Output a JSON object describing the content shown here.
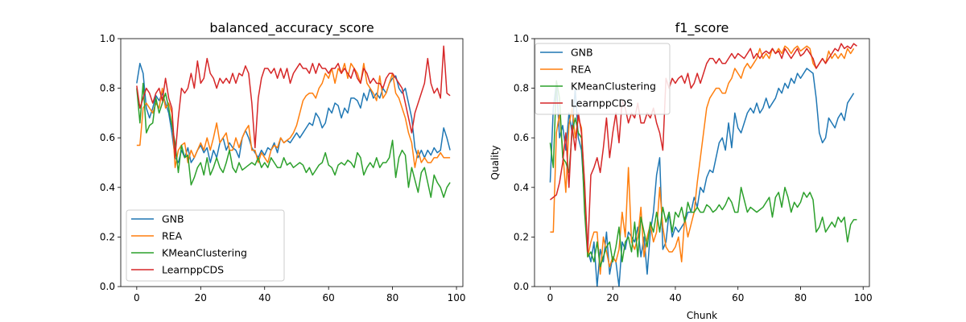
{
  "colors": {
    "GNB": "#1f77b4",
    "REA": "#ff7f0e",
    "KMeanClustering": "#2ca02c",
    "LearnppCDS": "#d62728"
  },
  "chart_data": [
    {
      "type": "line",
      "title": "balanced_accuracy_score",
      "xlabel": "",
      "ylabel": "",
      "xlim": [
        -5,
        102
      ],
      "ylim": [
        0.0,
        1.0
      ],
      "xticks": [
        "0",
        "20",
        "40",
        "60",
        "80",
        "100"
      ],
      "yticks": [
        "0.0",
        "0.2",
        "0.4",
        "0.6",
        "0.8",
        "1.0"
      ],
      "grid": false,
      "legend": "lower-left",
      "series": [
        {
          "name": "GNB",
          "values": [
            0.82,
            0.9,
            0.86,
            0.72,
            0.68,
            0.72,
            0.77,
            0.75,
            0.78,
            0.74,
            0.7,
            0.62,
            0.52,
            0.5,
            0.55,
            0.52,
            0.56,
            0.5,
            0.52,
            0.55,
            0.57,
            0.54,
            0.56,
            0.5,
            0.55,
            0.52,
            0.58,
            0.6,
            0.55,
            0.58,
            0.56,
            0.55,
            0.52,
            0.6,
            0.63,
            0.6,
            0.56,
            0.54,
            0.52,
            0.55,
            0.53,
            0.56,
            0.55,
            0.58,
            0.54,
            0.6,
            0.58,
            0.59,
            0.58,
            0.6,
            0.62,
            0.6,
            0.62,
            0.64,
            0.66,
            0.65,
            0.7,
            0.68,
            0.64,
            0.66,
            0.72,
            0.7,
            0.74,
            0.73,
            0.68,
            0.72,
            0.7,
            0.76,
            0.76,
            0.75,
            0.72,
            0.78,
            0.75,
            0.8,
            0.76,
            0.78,
            0.76,
            0.8,
            0.78,
            0.82,
            0.84,
            0.85,
            0.8,
            0.78,
            0.8,
            0.74,
            0.68,
            0.56,
            0.52,
            0.55,
            0.52,
            0.55,
            0.53,
            0.56,
            0.54,
            0.55,
            0.64,
            0.6,
            0.55
          ]
        },
        {
          "name": "REA",
          "values": [
            0.57,
            0.57,
            0.72,
            0.74,
            0.72,
            0.7,
            0.74,
            0.72,
            0.8,
            0.72,
            0.74,
            0.7,
            0.48,
            0.55,
            0.57,
            0.58,
            0.5,
            0.55,
            0.52,
            0.55,
            0.58,
            0.55,
            0.6,
            0.55,
            0.6,
            0.66,
            0.58,
            0.6,
            0.62,
            0.55,
            0.55,
            0.6,
            0.56,
            0.6,
            0.63,
            0.65,
            0.55,
            0.55,
            0.5,
            0.54,
            0.52,
            0.5,
            0.55,
            0.57,
            0.56,
            0.6,
            0.58,
            0.59,
            0.6,
            0.62,
            0.65,
            0.7,
            0.75,
            0.77,
            0.78,
            0.78,
            0.76,
            0.8,
            0.82,
            0.86,
            0.84,
            0.88,
            0.82,
            0.88,
            0.86,
            0.9,
            0.84,
            0.9,
            0.88,
            0.86,
            0.82,
            0.9,
            0.82,
            0.8,
            0.78,
            0.75,
            0.85,
            0.76,
            0.78,
            0.82,
            0.86,
            0.78,
            0.76,
            0.72,
            0.68,
            0.62,
            0.58,
            0.48,
            0.55,
            0.5,
            0.52,
            0.5,
            0.5,
            0.52,
            0.52,
            0.54,
            0.52,
            0.52,
            0.52
          ]
        },
        {
          "name": "KMeanClustering",
          "values": [
            0.8,
            0.66,
            0.82,
            0.62,
            0.65,
            0.66,
            0.76,
            0.7,
            0.74,
            0.78,
            0.72,
            0.65,
            0.58,
            0.46,
            0.57,
            0.52,
            0.53,
            0.41,
            0.44,
            0.48,
            0.5,
            0.45,
            0.52,
            0.45,
            0.48,
            0.52,
            0.48,
            0.46,
            0.5,
            0.55,
            0.48,
            0.46,
            0.5,
            0.47,
            0.48,
            0.49,
            0.5,
            0.49,
            0.52,
            0.48,
            0.5,
            0.48,
            0.52,
            0.5,
            0.48,
            0.48,
            0.52,
            0.49,
            0.5,
            0.48,
            0.49,
            0.5,
            0.49,
            0.46,
            0.48,
            0.45,
            0.47,
            0.49,
            0.5,
            0.54,
            0.49,
            0.48,
            0.45,
            0.49,
            0.5,
            0.49,
            0.51,
            0.5,
            0.48,
            0.54,
            0.52,
            0.45,
            0.48,
            0.5,
            0.48,
            0.52,
            0.48,
            0.5,
            0.5,
            0.52,
            0.59,
            0.44,
            0.52,
            0.55,
            0.53,
            0.4,
            0.48,
            0.43,
            0.38,
            0.46,
            0.48,
            0.42,
            0.36,
            0.45,
            0.42,
            0.4,
            0.36,
            0.4,
            0.42
          ]
        },
        {
          "name": "LearnppCDS",
          "values": [
            0.81,
            0.72,
            0.76,
            0.8,
            0.78,
            0.74,
            0.78,
            0.8,
            0.75,
            0.84,
            0.76,
            0.72,
            0.52,
            0.68,
            0.8,
            0.78,
            0.8,
            0.86,
            0.8,
            0.91,
            0.82,
            0.84,
            0.92,
            0.86,
            0.84,
            0.8,
            0.84,
            0.82,
            0.84,
            0.82,
            0.86,
            0.82,
            0.86,
            0.85,
            0.89,
            0.86,
            0.74,
            0.56,
            0.76,
            0.84,
            0.88,
            0.88,
            0.86,
            0.88,
            0.84,
            0.88,
            0.84,
            0.88,
            0.82,
            0.86,
            0.88,
            0.9,
            0.88,
            0.88,
            0.86,
            0.9,
            0.86,
            0.9,
            0.88,
            0.88,
            0.86,
            0.88,
            0.88,
            0.9,
            0.86,
            0.88,
            0.86,
            0.84,
            0.88,
            0.84,
            0.82,
            0.88,
            0.86,
            0.82,
            0.84,
            0.82,
            0.82,
            0.8,
            0.84,
            0.86,
            0.86,
            0.84,
            0.82,
            0.8,
            0.74,
            0.68,
            0.62,
            0.7,
            0.74,
            0.78,
            0.82,
            0.92,
            0.82,
            0.78,
            0.8,
            0.76,
            0.97,
            0.78,
            0.77
          ]
        }
      ]
    },
    {
      "type": "line",
      "title": "f1_score",
      "xlabel": "Chunk",
      "ylabel": "Quality",
      "xlim": [
        -5,
        102
      ],
      "ylim": [
        0.0,
        1.0
      ],
      "xticks": [
        "0",
        "20",
        "40",
        "60",
        "80",
        "100"
      ],
      "yticks": [
        "0.0",
        "0.2",
        "0.4",
        "0.6",
        "0.8",
        "1.0"
      ],
      "grid": false,
      "legend": "upper-left",
      "series": [
        {
          "name": "GNB",
          "values": [
            0.42,
            0.72,
            0.82,
            0.6,
            0.65,
            0.55,
            0.7,
            0.62,
            0.8,
            0.6,
            0.55,
            0.35,
            0.15,
            0.1,
            0.18,
            0.0,
            0.15,
            0.1,
            0.22,
            0.05,
            0.12,
            0.1,
            0.0,
            0.18,
            0.15,
            0.22,
            0.2,
            0.18,
            0.24,
            0.12,
            0.2,
            0.05,
            0.22,
            0.3,
            0.45,
            0.52,
            0.15,
            0.18,
            0.3,
            0.2,
            0.24,
            0.22,
            0.24,
            0.26,
            0.3,
            0.3,
            0.36,
            0.32,
            0.4,
            0.38,
            0.44,
            0.47,
            0.46,
            0.52,
            0.58,
            0.6,
            0.55,
            0.66,
            0.56,
            0.7,
            0.64,
            0.62,
            0.66,
            0.7,
            0.72,
            0.7,
            0.74,
            0.7,
            0.72,
            0.76,
            0.72,
            0.74,
            0.76,
            0.8,
            0.78,
            0.82,
            0.8,
            0.84,
            0.82,
            0.86,
            0.84,
            0.86,
            0.88,
            0.87,
            0.86,
            0.76,
            0.62,
            0.58,
            0.6,
            0.68,
            0.66,
            0.64,
            0.68,
            0.7,
            0.67,
            0.74,
            0.76,
            0.78
          ]
        },
        {
          "name": "REA",
          "values": [
            0.22,
            0.22,
            0.62,
            0.7,
            0.55,
            0.38,
            0.65,
            0.72,
            0.6,
            0.68,
            0.64,
            0.4,
            0.12,
            0.18,
            0.22,
            0.22,
            0.05,
            0.2,
            0.14,
            0.08,
            0.12,
            0.1,
            0.15,
            0.3,
            0.2,
            0.48,
            0.18,
            0.15,
            0.2,
            0.32,
            0.12,
            0.2,
            0.25,
            0.18,
            0.22,
            0.4,
            0.24,
            0.16,
            0.14,
            0.14,
            0.16,
            0.2,
            0.1,
            0.28,
            0.2,
            0.25,
            0.3,
            0.42,
            0.52,
            0.62,
            0.72,
            0.76,
            0.78,
            0.8,
            0.8,
            0.78,
            0.78,
            0.82,
            0.84,
            0.88,
            0.86,
            0.84,
            0.88,
            0.9,
            0.88,
            0.9,
            0.92,
            0.96,
            0.92,
            0.94,
            0.92,
            0.96,
            0.94,
            0.96,
            0.94,
            0.97,
            0.96,
            0.94,
            0.96,
            0.97,
            0.95,
            0.96,
            0.97,
            0.96,
            0.9,
            0.88,
            0.9,
            0.92,
            0.9,
            0.95,
            0.92,
            0.94,
            0.92,
            0.94,
            0.92,
            0.96,
            0.94,
            0.96
          ]
        },
        {
          "name": "KMeanClustering",
          "values": [
            0.58,
            0.48,
            0.83,
            0.76,
            0.52,
            0.5,
            0.46,
            0.62,
            0.68,
            0.62,
            0.6,
            0.3,
            0.12,
            0.14,
            0.1,
            0.18,
            0.08,
            0.12,
            0.16,
            0.18,
            0.1,
            0.16,
            0.24,
            0.1,
            0.18,
            0.2,
            0.14,
            0.26,
            0.12,
            0.28,
            0.22,
            0.16,
            0.26,
            0.22,
            0.3,
            0.22,
            0.32,
            0.26,
            0.3,
            0.22,
            0.3,
            0.28,
            0.32,
            0.26,
            0.34,
            0.3,
            0.3,
            0.32,
            0.3,
            0.3,
            0.33,
            0.32,
            0.3,
            0.31,
            0.33,
            0.31,
            0.33,
            0.36,
            0.34,
            0.3,
            0.3,
            0.4,
            0.35,
            0.3,
            0.32,
            0.31,
            0.3,
            0.31,
            0.32,
            0.34,
            0.36,
            0.28,
            0.36,
            0.38,
            0.32,
            0.4,
            0.36,
            0.3,
            0.34,
            0.32,
            0.34,
            0.38,
            0.36,
            0.38,
            0.35,
            0.22,
            0.24,
            0.28,
            0.22,
            0.24,
            0.26,
            0.24,
            0.28,
            0.26,
            0.28,
            0.18,
            0.25,
            0.27,
            0.27
          ]
        },
        {
          "name": "LearnppCDS",
          "values": [
            0.35,
            0.36,
            0.37,
            0.42,
            0.5,
            0.62,
            0.4,
            0.65,
            0.55,
            0.7,
            0.62,
            0.42,
            0.14,
            0.45,
            0.48,
            0.52,
            0.46,
            0.56,
            0.68,
            0.52,
            0.62,
            0.7,
            0.58,
            0.75,
            0.72,
            0.66,
            0.7,
            0.68,
            0.74,
            0.66,
            0.66,
            0.7,
            0.68,
            0.72,
            0.66,
            0.62,
            0.55,
            0.84,
            0.8,
            0.84,
            0.82,
            0.84,
            0.85,
            0.82,
            0.86,
            0.8,
            0.82,
            0.86,
            0.82,
            0.86,
            0.9,
            0.92,
            0.92,
            0.9,
            0.92,
            0.9,
            0.9,
            0.92,
            0.94,
            0.92,
            0.94,
            0.93,
            0.92,
            0.94,
            0.96,
            0.92,
            0.94,
            0.92,
            0.94,
            0.95,
            0.94,
            0.96,
            0.94,
            0.95,
            0.92,
            0.96,
            0.94,
            0.92,
            0.94,
            0.96,
            0.93,
            0.94,
            0.96,
            0.94,
            0.92,
            0.88,
            0.9,
            0.92,
            0.9,
            0.92,
            0.94,
            0.96,
            0.95,
            0.98,
            0.96,
            0.97,
            0.96,
            0.98,
            0.97
          ]
        }
      ]
    }
  ]
}
